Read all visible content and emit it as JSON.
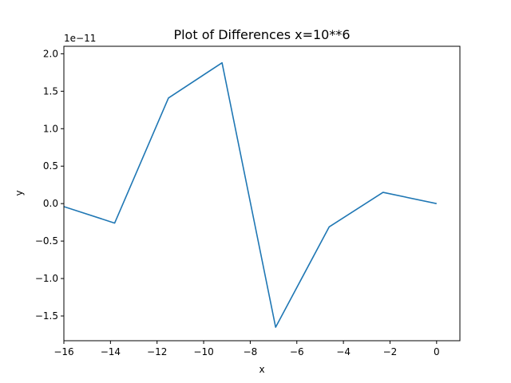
{
  "chart_data": {
    "type": "line",
    "title": "Plot of Differences x=10**6",
    "xlabel": "x",
    "ylabel": "y",
    "offset_text": "1e−11",
    "xlim": [
      -16,
      1
    ],
    "ylim": [
      -1.83,
      2.1
    ],
    "x_ticks": [
      -16,
      -14,
      -12,
      -10,
      -8,
      -6,
      -4,
      -2,
      0
    ],
    "x_tick_labels": [
      "−16",
      "−14",
      "−12",
      "−10",
      "−8",
      "−6",
      "−4",
      "−2",
      "0"
    ],
    "y_ticks": [
      -1.5,
      -1.0,
      -0.5,
      0.0,
      0.5,
      1.0,
      1.5,
      2.0
    ],
    "y_tick_labels": [
      "−1.5",
      "−1.0",
      "−0.5",
      "0.0",
      "0.5",
      "1.0",
      "1.5",
      "2.0"
    ],
    "grid": false,
    "line_color": "#1f77b4",
    "series": [
      {
        "x": [
          -16.1,
          -13.82,
          -11.51,
          -9.21,
          -6.91,
          -4.61,
          -2.3,
          0
        ],
        "y": [
          -0.03,
          -0.26,
          1.41,
          1.88,
          -1.65,
          -0.31,
          0.15,
          0.0
        ]
      }
    ]
  }
}
